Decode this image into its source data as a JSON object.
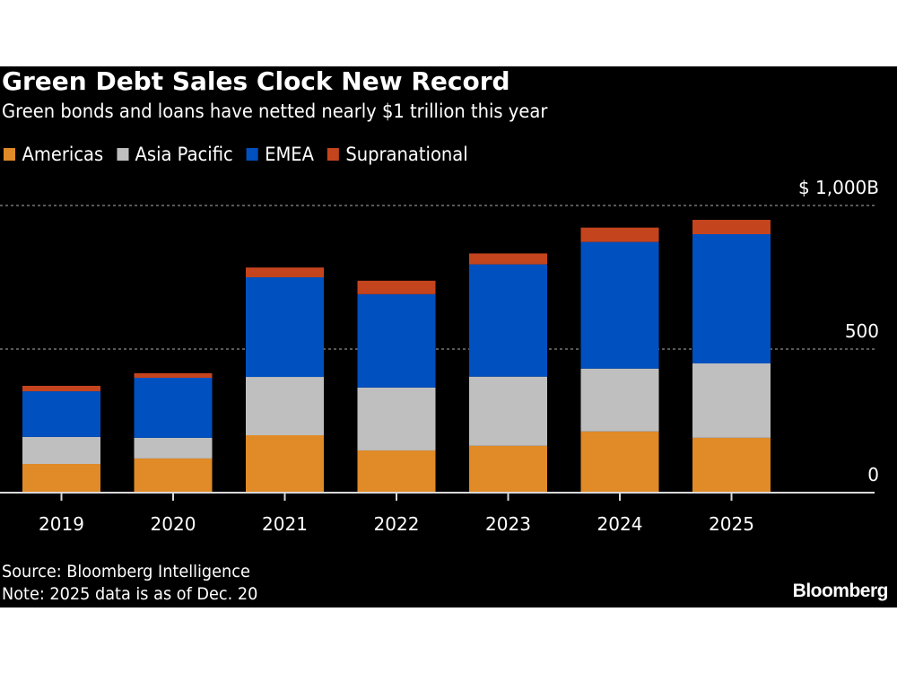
{
  "header": {
    "title": "Green Debt Sales Clock New Record",
    "subtitle": "Green bonds and loans have netted nearly $1 trillion this year"
  },
  "legend": [
    {
      "label": "Americas",
      "color": "#e08a28"
    },
    {
      "label": "Asia Pacific",
      "color": "#bfbfbf"
    },
    {
      "label": "EMEA",
      "color": "#0050bf"
    },
    {
      "label": "Supranational",
      "color": "#c4441e"
    }
  ],
  "footer": {
    "source": "Source: Bloomberg Intelligence",
    "note": "Note: 2025 data is as of Dec. 20",
    "brand": "Bloomberg"
  },
  "chart_data": {
    "type": "bar",
    "stacked": true,
    "title": "Green Debt Sales Clock New Record",
    "subtitle": "Green bonds and loans have netted nearly $1 trillion this year",
    "xlabel": "",
    "ylabel": "",
    "categories": [
      "2019",
      "2020",
      "2021",
      "2022",
      "2023",
      "2024",
      "2025"
    ],
    "series": [
      {
        "name": "Americas",
        "color": "#e08a28",
        "values": [
          100,
          119,
          200,
          147,
          163,
          213,
          191
        ]
      },
      {
        "name": "Asia Pacific",
        "color": "#bfbfbf",
        "values": [
          94,
          72,
          203,
          219,
          241,
          219,
          259
        ]
      },
      {
        "name": "EMEA",
        "color": "#0050bf",
        "values": [
          159,
          209,
          347,
          325,
          391,
          441,
          450
        ]
      },
      {
        "name": "Supranational",
        "color": "#c4441e",
        "values": [
          19,
          16,
          34,
          47,
          38,
          50,
          50
        ]
      }
    ],
    "ylim": [
      0,
      1000
    ],
    "yticks": [
      {
        "value": 0,
        "label": "0"
      },
      {
        "value": 500,
        "label": "500"
      },
      {
        "value": 1000,
        "label": "$ 1,000B"
      }
    ],
    "grid": true,
    "legend_position": "top-left",
    "y_axis_side": "right"
  }
}
